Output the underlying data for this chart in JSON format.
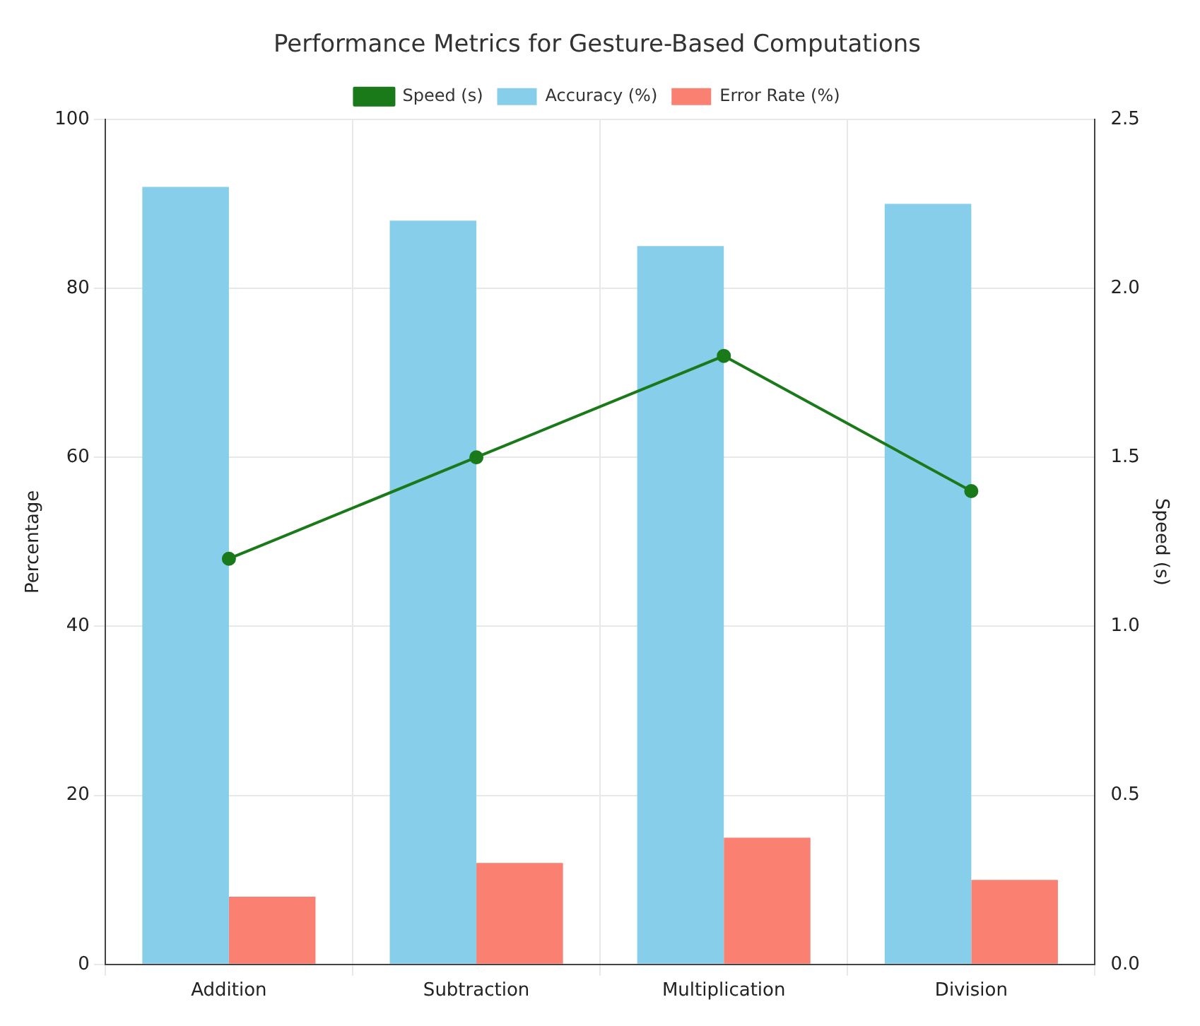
{
  "chart_data": {
    "type": "bar",
    "title": "Performance Metrics for Gesture-Based Computations",
    "ylabel": "Percentage",
    "y2label": "Speed (s)",
    "categories": [
      "Addition",
      "Subtraction",
      "Multiplication",
      "Division"
    ],
    "series": [
      {
        "name": "Accuracy (%)",
        "color": "#87ceeb",
        "values": [
          92,
          88,
          85,
          90
        ]
      },
      {
        "name": "Error Rate (%)",
        "color": "#fa8072",
        "values": [
          8,
          12,
          15,
          10
        ]
      },
      {
        "name": "Speed (s)",
        "type": "line",
        "axis": "y2",
        "color": "#1a7a1a",
        "values": [
          1.2,
          1.5,
          1.8,
          1.4
        ]
      }
    ],
    "ylim": [
      0,
      100
    ],
    "yticks": [
      0,
      20,
      40,
      60,
      80,
      100
    ],
    "y2lim": [
      0,
      2.5
    ],
    "y2ticks": [
      {
        "value": 0,
        "label": "0.0"
      },
      {
        "value": 0.5,
        "label": "0.5"
      },
      {
        "value": 1,
        "label": "1.0"
      },
      {
        "value": 1.5,
        "label": "1.5"
      },
      {
        "value": 2,
        "label": "2.0"
      },
      {
        "value": 2.5,
        "label": "2.5"
      }
    ],
    "grid": true,
    "legend": "top",
    "marker": "circle",
    "line_style": "solid"
  }
}
